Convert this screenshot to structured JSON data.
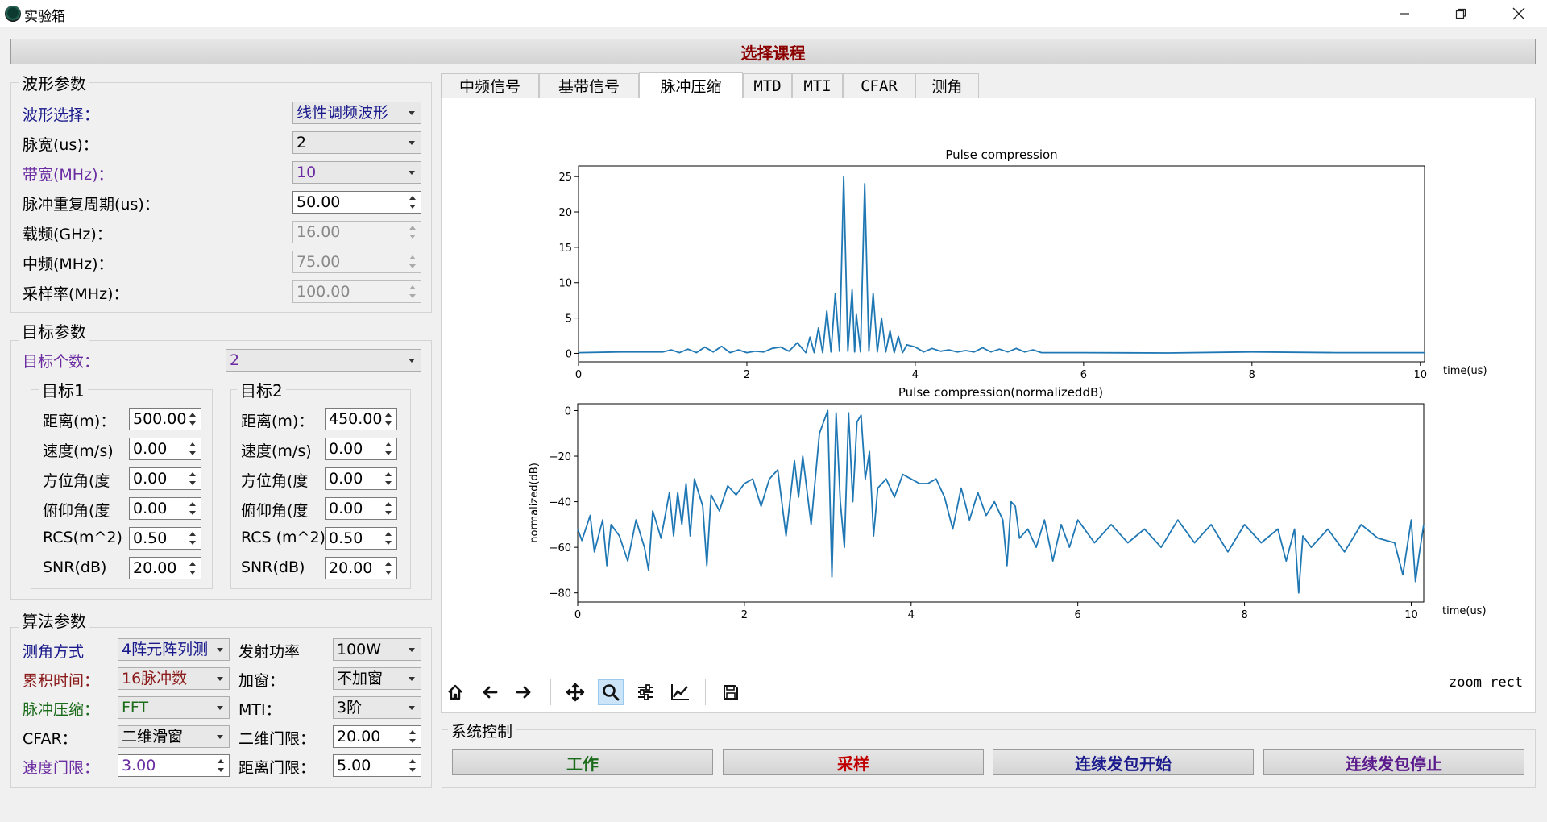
{
  "window": {
    "title": "实验箱"
  },
  "course_button": {
    "label": "选择课程",
    "color": "#8b0000"
  },
  "waveform_group": {
    "title": "波形参数",
    "rows": [
      {
        "label": "波形选择：",
        "value": "线性调频波形",
        "kind": "combo",
        "label_color": "#1a1a8c",
        "value_color": "#1a1a8c"
      },
      {
        "label": "脉宽(us)：",
        "value": "2",
        "kind": "combo"
      },
      {
        "label": "带宽(MHz)：",
        "value": "10",
        "kind": "combo",
        "label_color": "#6a2ca0",
        "value_color": "#6a2ca0"
      },
      {
        "label": "脉冲重复周期(us)：",
        "value": "50.00",
        "kind": "spin"
      },
      {
        "label": "载频(GHz)：",
        "value": "16.00",
        "kind": "spin-disabled"
      },
      {
        "label": "中频(MHz)：",
        "value": "75.00",
        "kind": "spin-disabled"
      },
      {
        "label": "采样率(MHz)：",
        "value": "100.00",
        "kind": "spin-disabled"
      }
    ]
  },
  "target_group": {
    "title": "目标参数",
    "count_label": "目标个数：",
    "count_value": "2",
    "label_color": "#6a2ca0",
    "targets": [
      {
        "title": "目标1",
        "rows": [
          {
            "label": "距离(m)：",
            "value": "500.00"
          },
          {
            "label": "速度(m/s)",
            "value": "0.00"
          },
          {
            "label": "方位角(度",
            "value": "0.00"
          },
          {
            "label": "俯仰角(度",
            "value": "0.00"
          },
          {
            "label": "RCS(m^2)",
            "value": "0.50"
          },
          {
            "label": "SNR(dB)",
            "value": "20.00"
          }
        ]
      },
      {
        "title": "目标2",
        "rows": [
          {
            "label": "距离(m)：",
            "value": "450.00"
          },
          {
            "label": "速度(m/s)",
            "value": "0.00"
          },
          {
            "label": "方位角(度",
            "value": "0.00"
          },
          {
            "label": "俯仰角(度",
            "value": "0.00"
          },
          {
            "label": "RCS (m^2)",
            "value": "0.50"
          },
          {
            "label": "SNR(dB)",
            "value": "20.00"
          }
        ]
      }
    ]
  },
  "algo_group": {
    "title": "算法参数",
    "rows": [
      {
        "l1": "测角方式",
        "v1": "4阵元阵列测",
        "k1": "combo",
        "c1": "#1a1a8c",
        "l2": "发射功率",
        "v2": "100W",
        "k2": "combo"
      },
      {
        "l1": "累积时间：",
        "v1": "16脉冲数",
        "k1": "combo",
        "c1": "#8b1a1a",
        "l2": "加窗：",
        "v2": "不加窗",
        "k2": "combo"
      },
      {
        "l1": "脉冲压缩：",
        "v1": "FFT",
        "k1": "combo",
        "c1": "#1a6b1a",
        "l2": "MTI：",
        "v2": "3阶",
        "k2": "combo"
      },
      {
        "l1": "CFAR：",
        "v1": "二维滑窗",
        "k1": "combo",
        "c1": "#000000",
        "l2": "二维门限：",
        "v2": "20.00",
        "k2": "spin"
      },
      {
        "l1": "速度门限：",
        "v1": "3.00",
        "k1": "spin",
        "c1": "#6a2ca0",
        "l2": "距离门限：",
        "v2": "5.00",
        "k2": "spin"
      }
    ]
  },
  "tabs": [
    {
      "label": "中频信号",
      "active": false
    },
    {
      "label": "基带信号",
      "active": false
    },
    {
      "label": "脉冲压缩",
      "active": true
    },
    {
      "label": "MTD",
      "active": false
    },
    {
      "label": "MTI",
      "active": false
    },
    {
      "label": "CFAR",
      "active": false
    },
    {
      "label": "测角",
      "active": false
    }
  ],
  "toolbar": {
    "icons": [
      "home-icon",
      "back-arrow-icon",
      "forward-arrow-icon",
      "pan-icon",
      "zoom-icon",
      "configure-subplots-icon",
      "edit-axes-icon",
      "save-icon"
    ],
    "status": "zoom rect"
  },
  "system_control": {
    "title": "系统控制",
    "buttons": [
      {
        "label": "工作",
        "color": "#1a6b1a"
      },
      {
        "label": "采样",
        "color": "#c00000"
      },
      {
        "label": "连续发包开始",
        "color": "#1a1a8c"
      },
      {
        "label": "连续发包停止",
        "color": "#5a1a8c"
      }
    ]
  },
  "chart_data": [
    {
      "type": "line",
      "title": "Pulse compression",
      "xlabel": "time(us)",
      "ylabel": "",
      "xlim": [
        0,
        10.05
      ],
      "ylim": [
        -1.2,
        26.5
      ],
      "xticks": [
        0,
        2,
        4,
        6,
        8,
        10
      ],
      "yticks": [
        0,
        5,
        10,
        15,
        20,
        25
      ],
      "color": "#1f77b4",
      "x": [
        0,
        0.5,
        1.0,
        1.1,
        1.2,
        1.3,
        1.4,
        1.5,
        1.6,
        1.7,
        1.8,
        1.9,
        2.0,
        2.1,
        2.2,
        2.3,
        2.4,
        2.5,
        2.6,
        2.7,
        2.75,
        2.8,
        2.85,
        2.9,
        2.95,
        3.0,
        3.05,
        3.1,
        3.15,
        3.2,
        3.25,
        3.28,
        3.3,
        3.35,
        3.4,
        3.45,
        3.5,
        3.55,
        3.6,
        3.65,
        3.7,
        3.75,
        3.8,
        3.85,
        3.9,
        4.0,
        4.1,
        4.2,
        4.3,
        4.4,
        4.5,
        4.6,
        4.7,
        4.8,
        4.9,
        5.0,
        5.1,
        5.2,
        5.3,
        5.4,
        5.5,
        6.0,
        7.0,
        8.0,
        9.0,
        10.05
      ],
      "y": [
        0.1,
        0.2,
        0.2,
        0.5,
        0.1,
        0.6,
        0.1,
        0.9,
        0.2,
        1.0,
        0.1,
        0.5,
        0.1,
        0.3,
        0.2,
        0.7,
        0.9,
        0.3,
        1.5,
        0.1,
        2.3,
        0.1,
        3.6,
        0.1,
        6.0,
        0.2,
        8.5,
        0.3,
        25.0,
        0.3,
        9.0,
        0.2,
        5.5,
        0.2,
        24.0,
        0.3,
        8.5,
        0.2,
        5.0,
        0.2,
        3.2,
        0.1,
        2.4,
        0.1,
        1.2,
        0.9,
        0.2,
        0.7,
        0.3,
        0.5,
        0.2,
        0.4,
        0.2,
        0.8,
        0.2,
        0.6,
        0.2,
        0.7,
        0.2,
        0.5,
        0.1,
        0.1,
        0.05,
        0.2,
        0.1,
        0.1
      ]
    },
    {
      "type": "line",
      "title": "Pulse compression(normalizeddB)",
      "xlabel": "time(us)",
      "ylabel": "normalized(dB)",
      "xlim": [
        0,
        10.15
      ],
      "ylim": [
        -84,
        3
      ],
      "xticks": [
        0,
        2,
        4,
        6,
        8,
        10
      ],
      "yticks": [
        0,
        -20,
        -40,
        -60,
        -80
      ],
      "color": "#1f77b4",
      "x": [
        0,
        0.05,
        0.15,
        0.2,
        0.3,
        0.35,
        0.4,
        0.5,
        0.6,
        0.7,
        0.8,
        0.85,
        0.9,
        1.0,
        1.1,
        1.15,
        1.2,
        1.25,
        1.3,
        1.35,
        1.4,
        1.5,
        1.55,
        1.6,
        1.7,
        1.8,
        1.9,
        2.0,
        2.1,
        2.2,
        2.3,
        2.4,
        2.5,
        2.6,
        2.65,
        2.7,
        2.8,
        2.9,
        3.0,
        3.05,
        3.1,
        3.15,
        3.2,
        3.25,
        3.3,
        3.35,
        3.4,
        3.45,
        3.5,
        3.55,
        3.6,
        3.7,
        3.8,
        3.9,
        4.0,
        4.1,
        4.2,
        4.3,
        4.4,
        4.5,
        4.6,
        4.7,
        4.8,
        4.9,
        5.0,
        5.1,
        5.15,
        5.2,
        5.25,
        5.3,
        5.4,
        5.5,
        5.6,
        5.7,
        5.8,
        5.9,
        6.0,
        6.2,
        6.4,
        6.6,
        6.8,
        7.0,
        7.2,
        7.4,
        7.6,
        7.8,
        8.0,
        8.2,
        8.4,
        8.5,
        8.6,
        8.65,
        8.7,
        8.8,
        9.0,
        9.2,
        9.4,
        9.6,
        9.8,
        9.9,
        10.0,
        10.05,
        10.1,
        10.15
      ],
      "y": [
        -52,
        -57,
        -46,
        -62,
        -48,
        -68,
        -50,
        -55,
        -66,
        -48,
        -60,
        -70,
        -44,
        -56,
        -36,
        -55,
        -36,
        -50,
        -32,
        -55,
        -30,
        -42,
        -68,
        -37,
        -44,
        -33,
        -37,
        -32,
        -30,
        -42,
        -30,
        -26,
        -55,
        -22,
        -38,
        -20,
        -50,
        -10,
        0,
        -73,
        -1,
        -40,
        -60,
        -1,
        -40,
        -5,
        -2,
        -30,
        -18,
        -55,
        -34,
        -30,
        -38,
        -28,
        -30,
        -32,
        -32,
        -30,
        -38,
        -52,
        -34,
        -48,
        -36,
        -46,
        -40,
        -48,
        -68,
        -40,
        -42,
        -56,
        -52,
        -60,
        -48,
        -66,
        -50,
        -60,
        -48,
        -58,
        -50,
        -58,
        -52,
        -60,
        -48,
        -58,
        -50,
        -62,
        -50,
        -58,
        -52,
        -66,
        -52,
        -80,
        -55,
        -60,
        -52,
        -62,
        -50,
        -56,
        -58,
        -72,
        -48,
        -75,
        -62,
        -50
      ]
    }
  ]
}
